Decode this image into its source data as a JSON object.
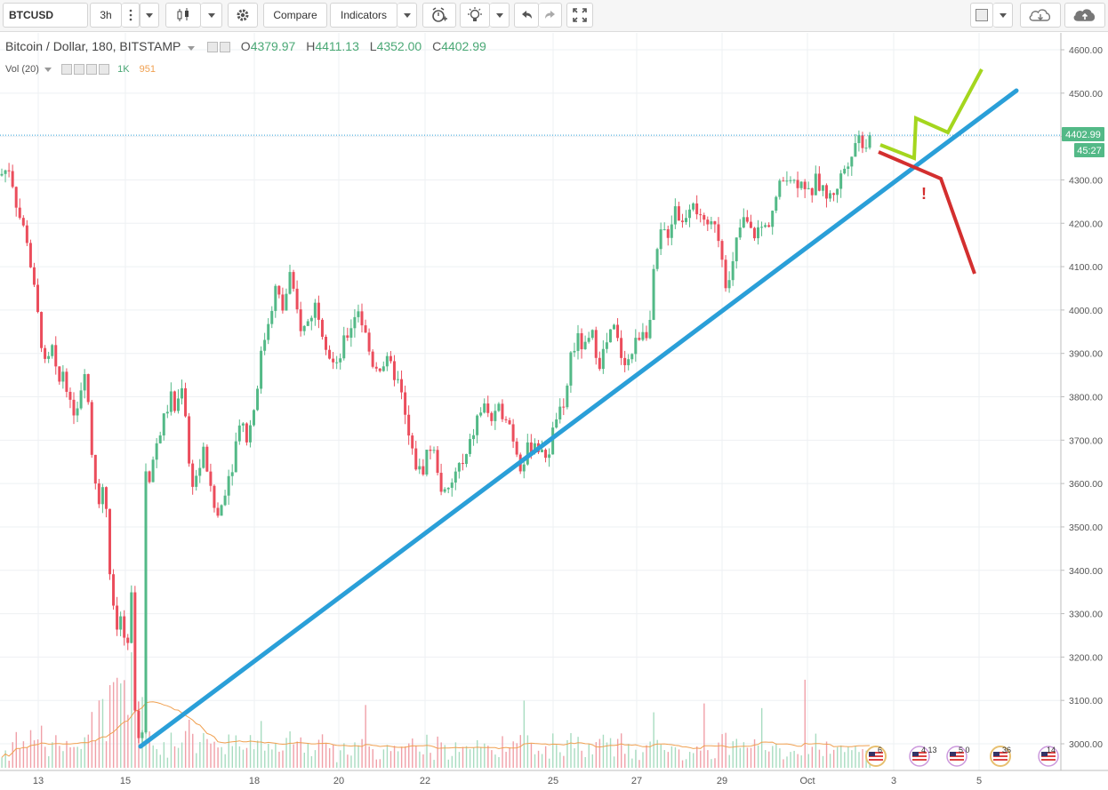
{
  "toolbar": {
    "symbol": "BTCUSD",
    "interval": "3h",
    "compare_label": "Compare",
    "indicators_label": "Indicators"
  },
  "legend": {
    "title": "Bitcoin / Dollar, 180, BITSTAMP",
    "o_label": "O",
    "o_value": "4379.97",
    "h_label": "H",
    "h_value": "4411.13",
    "l_label": "L",
    "l_value": "4352.00",
    "c_label": "C",
    "c_value": "4402.99",
    "vol_label": "Vol (20)",
    "vol_value": "1K",
    "vol_ma_value": "951"
  },
  "colors": {
    "up": "#53b987",
    "down": "#eb4d5c",
    "trendline": "#2a9fd8",
    "bull_scenario": "#a4d61e",
    "bear_scenario": "#d32f2f",
    "vol_ma": "#f0a050"
  },
  "chart_data": {
    "type": "candlestick",
    "title": "Bitcoin / Dollar, 180, BITSTAMP",
    "ylim": [
      2960,
      4640
    ],
    "y_ticks": [
      "3000.00",
      "3100.00",
      "3200.00",
      "3300.00",
      "3400.00",
      "3500.00",
      "3600.00",
      "3700.00",
      "3800.00",
      "3900.00",
      "4000.00",
      "4100.00",
      "4200.00",
      "4300.00",
      "4400.00",
      "4500.00",
      "4600.00"
    ],
    "x_ticks": [
      "13",
      "15",
      "18",
      "20",
      "22",
      "25",
      "27",
      "29",
      "Oct",
      "3",
      "5"
    ],
    "last_price_label": "4402.99",
    "countdown_label": "45:27",
    "close_path": [
      [
        0,
        4310
      ],
      [
        5,
        4320
      ],
      [
        11,
        4330
      ],
      [
        18,
        4250
      ],
      [
        24,
        4200
      ],
      [
        30,
        4170
      ],
      [
        38,
        4050
      ],
      [
        45,
        3950
      ],
      [
        52,
        3850
      ],
      [
        58,
        3920
      ],
      [
        65,
        3820
      ],
      [
        72,
        3870
      ],
      [
        80,
        3760
      ],
      [
        88,
        3790
      ],
      [
        96,
        3880
      ],
      [
        104,
        3650
      ],
      [
        112,
        3560
      ],
      [
        118,
        3600
      ],
      [
        124,
        3380
      ],
      [
        130,
        3250
      ],
      [
        136,
        3300
      ],
      [
        142,
        3180
      ],
      [
        148,
        3340
      ],
      [
        152,
        3080
      ],
      [
        156,
        3030
      ],
      [
        160,
        3020
      ],
      [
        163,
        3640
      ],
      [
        168,
        3600
      ],
      [
        174,
        3680
      ],
      [
        180,
        3720
      ],
      [
        186,
        3760
      ],
      [
        192,
        3800
      ],
      [
        198,
        3760
      ],
      [
        204,
        3840
      ],
      [
        208,
        3780
      ],
      [
        214,
        3600
      ],
      [
        222,
        3620
      ],
      [
        230,
        3680
      ],
      [
        238,
        3560
      ],
      [
        246,
        3520
      ],
      [
        254,
        3600
      ],
      [
        262,
        3650
      ],
      [
        270,
        3760
      ],
      [
        278,
        3700
      ],
      [
        286,
        3780
      ],
      [
        294,
        3900
      ],
      [
        302,
        3980
      ],
      [
        310,
        4050
      ],
      [
        318,
        4000
      ],
      [
        326,
        4080
      ],
      [
        332,
        4010
      ],
      [
        340,
        3950
      ],
      [
        348,
        3980
      ],
      [
        356,
        4020
      ],
      [
        362,
        3960
      ],
      [
        370,
        3900
      ],
      [
        378,
        3860
      ],
      [
        386,
        3920
      ],
      [
        394,
        3960
      ],
      [
        402,
        4010
      ],
      [
        410,
        3950
      ],
      [
        418,
        3880
      ],
      [
        426,
        3870
      ],
      [
        434,
        3880
      ],
      [
        442,
        3860
      ],
      [
        450,
        3820
      ],
      [
        458,
        3720
      ],
      [
        466,
        3650
      ],
      [
        474,
        3620
      ],
      [
        482,
        3690
      ],
      [
        490,
        3660
      ],
      [
        498,
        3570
      ],
      [
        506,
        3580
      ],
      [
        514,
        3640
      ],
      [
        522,
        3640
      ],
      [
        530,
        3700
      ],
      [
        538,
        3760
      ],
      [
        546,
        3780
      ],
      [
        554,
        3740
      ],
      [
        562,
        3770
      ],
      [
        570,
        3760
      ],
      [
        578,
        3700
      ],
      [
        586,
        3640
      ],
      [
        594,
        3680
      ],
      [
        602,
        3700
      ],
      [
        610,
        3660
      ],
      [
        618,
        3680
      ],
      [
        626,
        3760
      ],
      [
        634,
        3760
      ],
      [
        642,
        3900
      ],
      [
        650,
        3930
      ],
      [
        658,
        3910
      ],
      [
        666,
        3940
      ],
      [
        674,
        3880
      ],
      [
        682,
        3920
      ],
      [
        690,
        3960
      ],
      [
        698,
        3900
      ],
      [
        706,
        3880
      ],
      [
        714,
        3920
      ],
      [
        722,
        3960
      ],
      [
        730,
        3950
      ],
      [
        736,
        4100
      ],
      [
        744,
        4180
      ],
      [
        752,
        4180
      ],
      [
        760,
        4250
      ],
      [
        766,
        4190
      ],
      [
        774,
        4240
      ],
      [
        780,
        4260
      ],
      [
        788,
        4200
      ],
      [
        796,
        4180
      ],
      [
        804,
        4210
      ],
      [
        812,
        4130
      ],
      [
        818,
        4040
      ],
      [
        824,
        4100
      ],
      [
        830,
        4180
      ],
      [
        838,
        4210
      ],
      [
        846,
        4170
      ],
      [
        854,
        4190
      ],
      [
        862,
        4190
      ],
      [
        870,
        4240
      ],
      [
        878,
        4290
      ],
      [
        886,
        4320
      ],
      [
        894,
        4290
      ],
      [
        902,
        4310
      ],
      [
        910,
        4260
      ],
      [
        918,
        4300
      ],
      [
        926,
        4270
      ],
      [
        934,
        4260
      ],
      [
        942,
        4290
      ],
      [
        950,
        4330
      ],
      [
        958,
        4370
      ],
      [
        964,
        4400
      ],
      [
        970,
        4390
      ],
      [
        976,
        4380
      ],
      [
        981,
        4400
      ]
    ]
  }
}
